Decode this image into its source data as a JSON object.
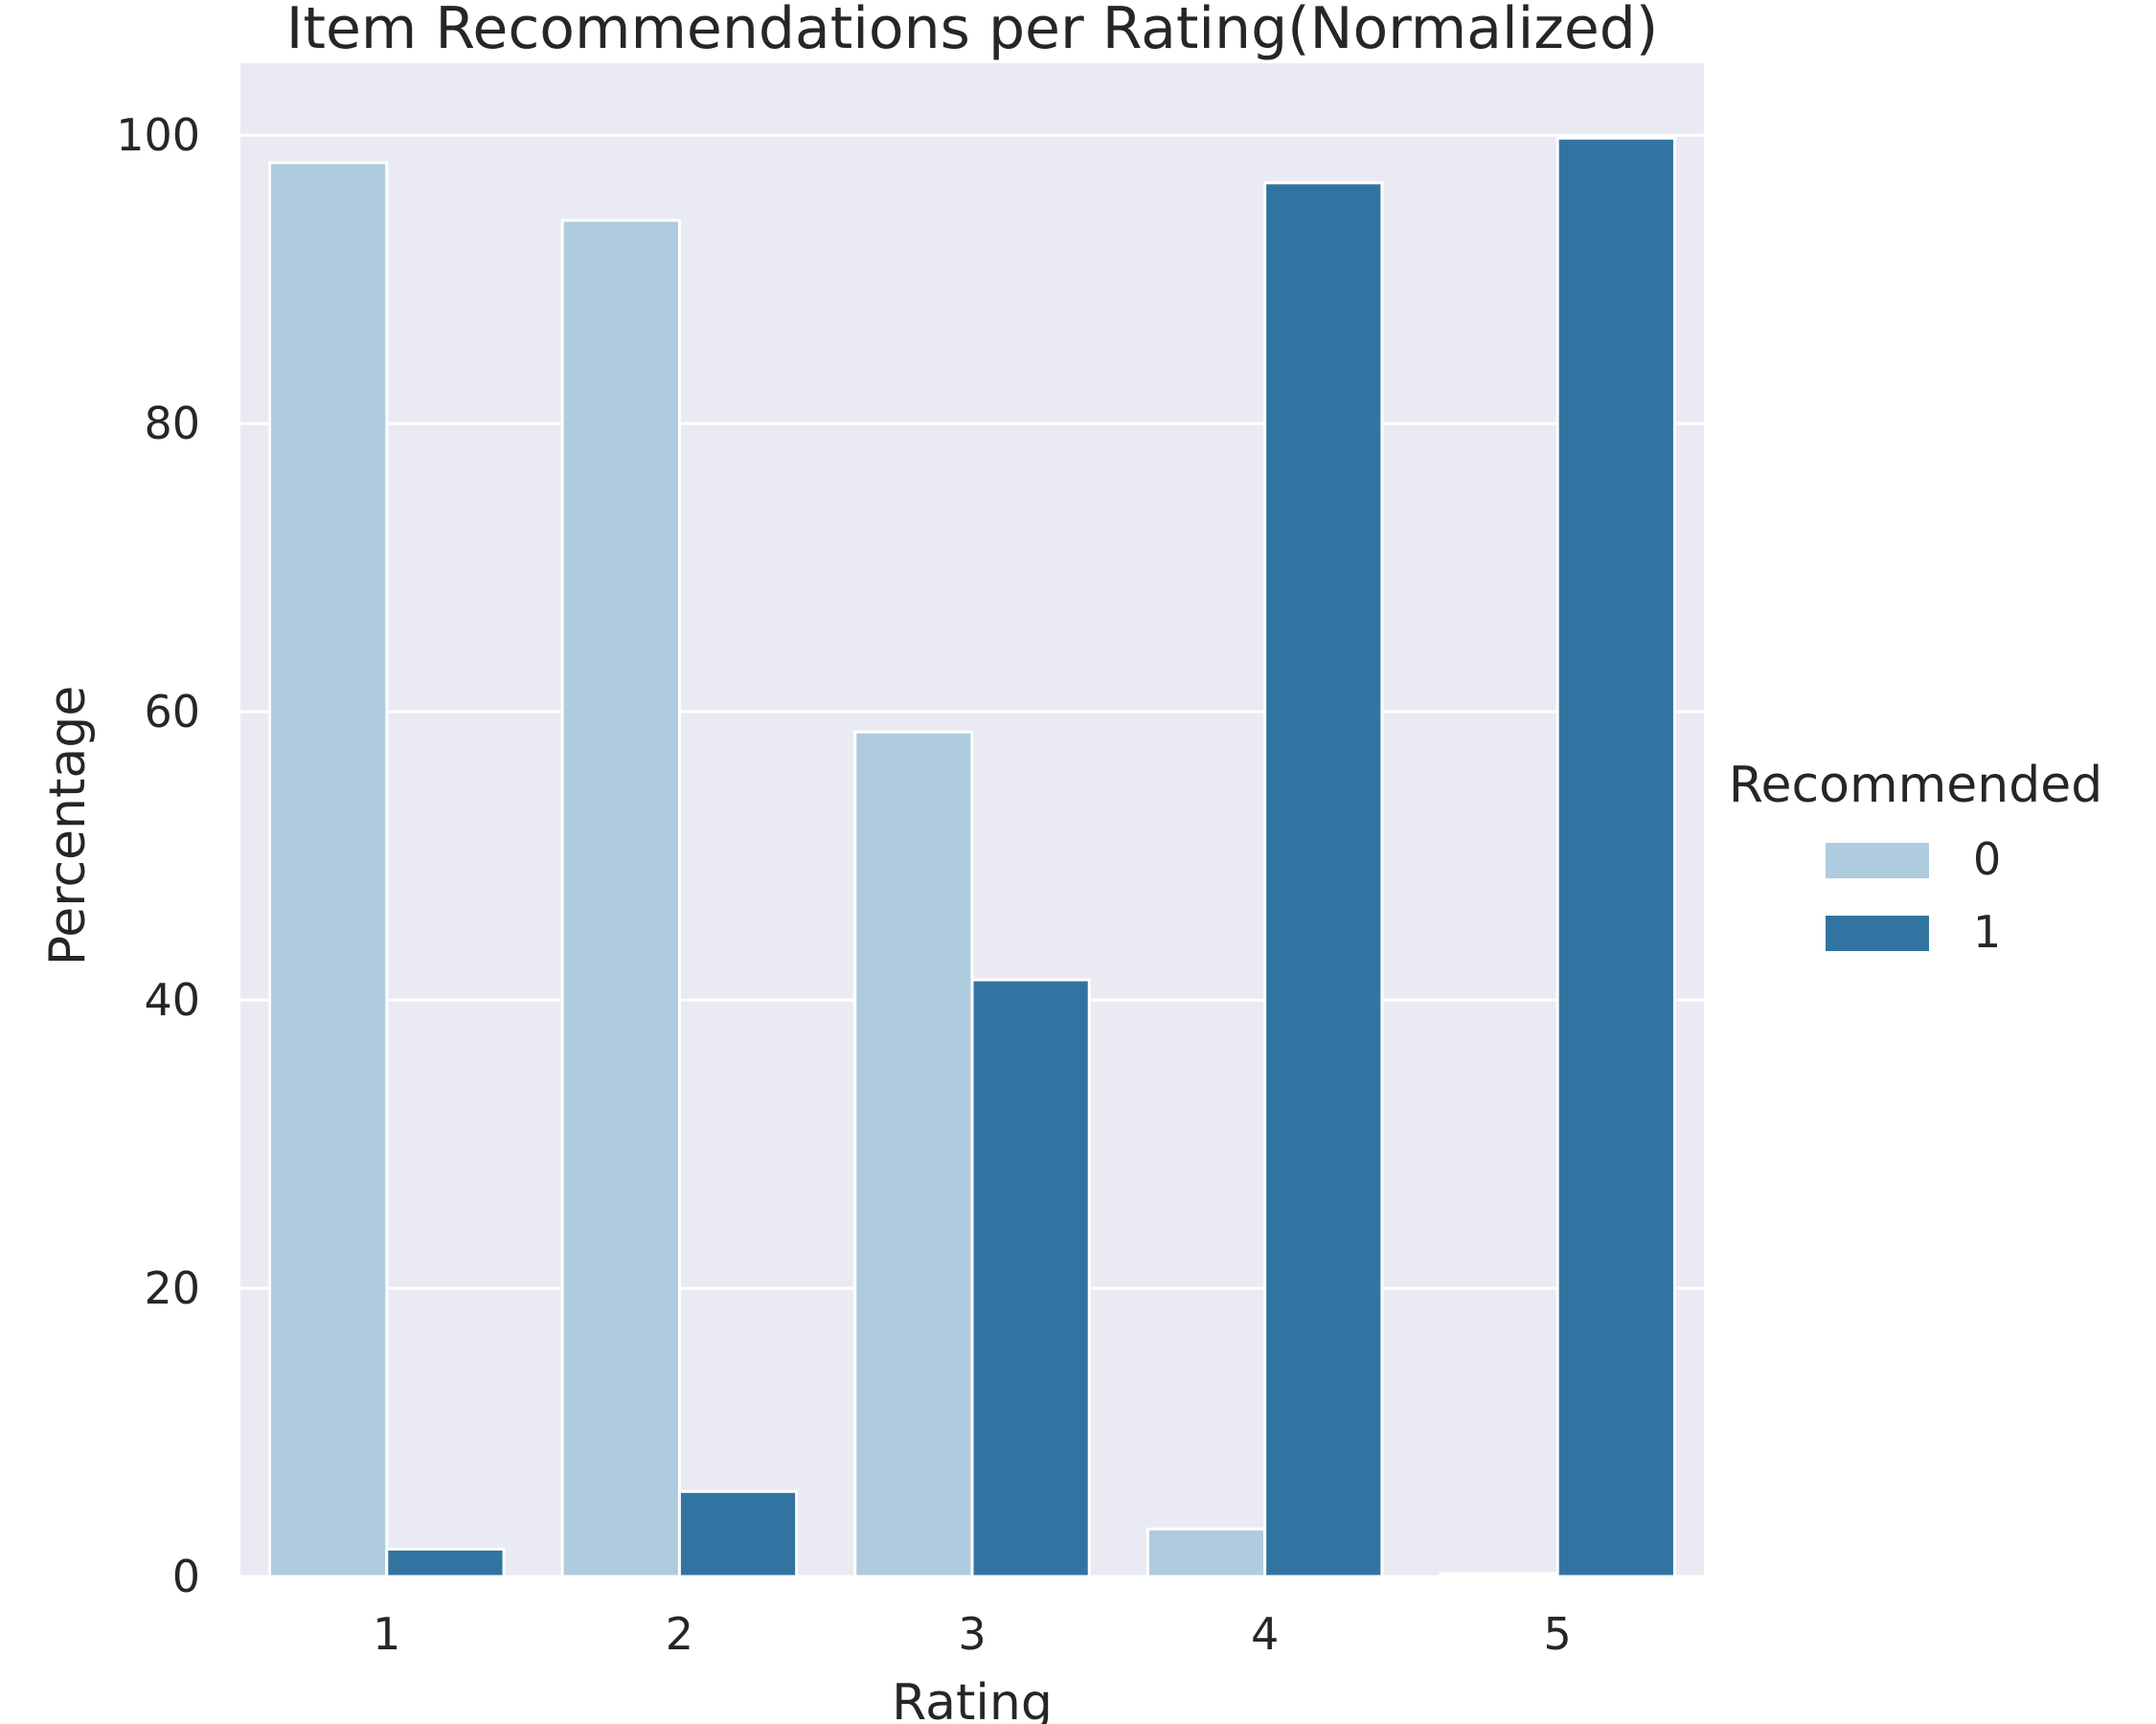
{
  "chart_data": {
    "type": "bar",
    "title": "Item Recommendations per Rating(Normalized)",
    "xlabel": "Rating",
    "ylabel": "Percentage",
    "categories": [
      "1",
      "2",
      "3",
      "4",
      "5"
    ],
    "ylim": [
      0,
      105
    ],
    "yticks": [
      "0",
      "20",
      "40",
      "60",
      "80",
      "100"
    ],
    "grid": true,
    "legend": {
      "title": "Recommended",
      "placement": "right"
    },
    "series": [
      {
        "name": "0",
        "color": "#afcbde",
        "values": [
          98.1,
          94.1,
          58.6,
          3.3,
          0.2
        ]
      },
      {
        "name": "1",
        "color": "#3274a1",
        "values": [
          1.9,
          5.9,
          41.4,
          96.7,
          99.8
        ]
      }
    ],
    "background": "#eaeaf2"
  }
}
